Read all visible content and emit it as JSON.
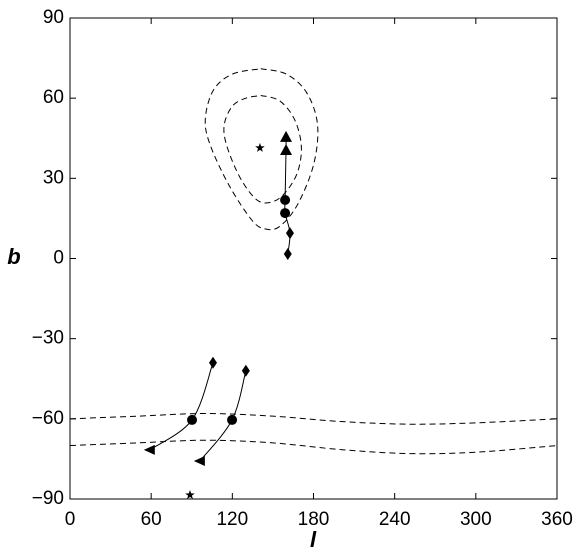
{
  "chart_data": {
    "type": "scatter",
    "x_label": "l",
    "y_label": "b",
    "xlim": [
      0,
      360
    ],
    "xticks": [
      0,
      60,
      120,
      180,
      240,
      300,
      360
    ],
    "ylim": [
      -90,
      90
    ],
    "yticks": [
      {
        "value": -90,
        "label": "−90"
      },
      {
        "value": -60,
        "label": "−60"
      },
      {
        "value": -30,
        "label": "−30"
      },
      0,
      30,
      60,
      90
    ],
    "color": "#000000",
    "series": [
      {
        "line": "dashed",
        "marker": null,
        "x": [
          141,
          160,
          175,
          183,
          180,
          168,
          155,
          145,
          135,
          118,
          104,
          100,
          106,
          120,
          141
        ],
        "y": [
          71,
          69,
          62,
          50,
          35,
          20,
          12,
          11,
          14,
          27,
          42,
          52,
          63,
          69,
          71
        ]
      },
      {
        "line": "dashed",
        "marker": null,
        "x": [
          141,
          155,
          166,
          171,
          168,
          158,
          148,
          138,
          126,
          116,
          114,
          120,
          130,
          141
        ],
        "y": [
          61,
          59,
          52,
          42,
          32,
          24,
          21,
          22,
          30,
          42,
          50,
          57,
          60,
          61
        ]
      },
      {
        "line": "dashed",
        "marker": null,
        "x": [
          0,
          50,
          100,
          150,
          200,
          250,
          300,
          360
        ],
        "y": [
          -60,
          -59,
          -58,
          -59,
          -61,
          -62,
          -61.5,
          -60
        ]
      },
      {
        "line": "dashed",
        "marker": null,
        "x": [
          0,
          50,
          100,
          150,
          200,
          250,
          300,
          360
        ],
        "y": [
          -70,
          -69,
          -68,
          -69,
          -71.5,
          -73,
          -72.5,
          -70
        ]
      },
      {
        "line": "solid",
        "marker": null,
        "x": [
          161,
          162.6,
          159,
          159,
          159.7,
          159.7
        ],
        "y": [
          1.7,
          9.5,
          17,
          21.9,
          40.6,
          45.5
        ]
      },
      {
        "line": "solid",
        "marker": null,
        "x": [
          105.7,
          90.2,
          59
        ],
        "y": [
          -39,
          -60.4,
          -71.6
        ]
      },
      {
        "line": "solid",
        "marker": null,
        "x": [
          130,
          119.8,
          96
        ],
        "y": [
          -42,
          -60.4,
          -75.8
        ]
      },
      {
        "line": null,
        "marker": "star",
        "x": [
          140.4,
          88.7
        ],
        "y": [
          41.4,
          -88.5
        ]
      },
      {
        "line": null,
        "marker": "triangle-up",
        "x": [
          159.7,
          159.7
        ],
        "y": [
          45.5,
          40.6
        ]
      },
      {
        "line": null,
        "marker": "circle",
        "x": [
          159,
          159,
          90.2,
          119.8
        ],
        "y": [
          21.9,
          17,
          -60.4,
          -60.4
        ]
      },
      {
        "line": null,
        "marker": "diamond",
        "x": [
          162.6,
          161,
          105.7,
          130
        ],
        "y": [
          9.5,
          1.7,
          -39,
          -42
        ]
      },
      {
        "line": null,
        "marker": "triangle-left",
        "x": [
          59,
          96
        ],
        "y": [
          -71.6,
          -75.8
        ]
      }
    ]
  }
}
